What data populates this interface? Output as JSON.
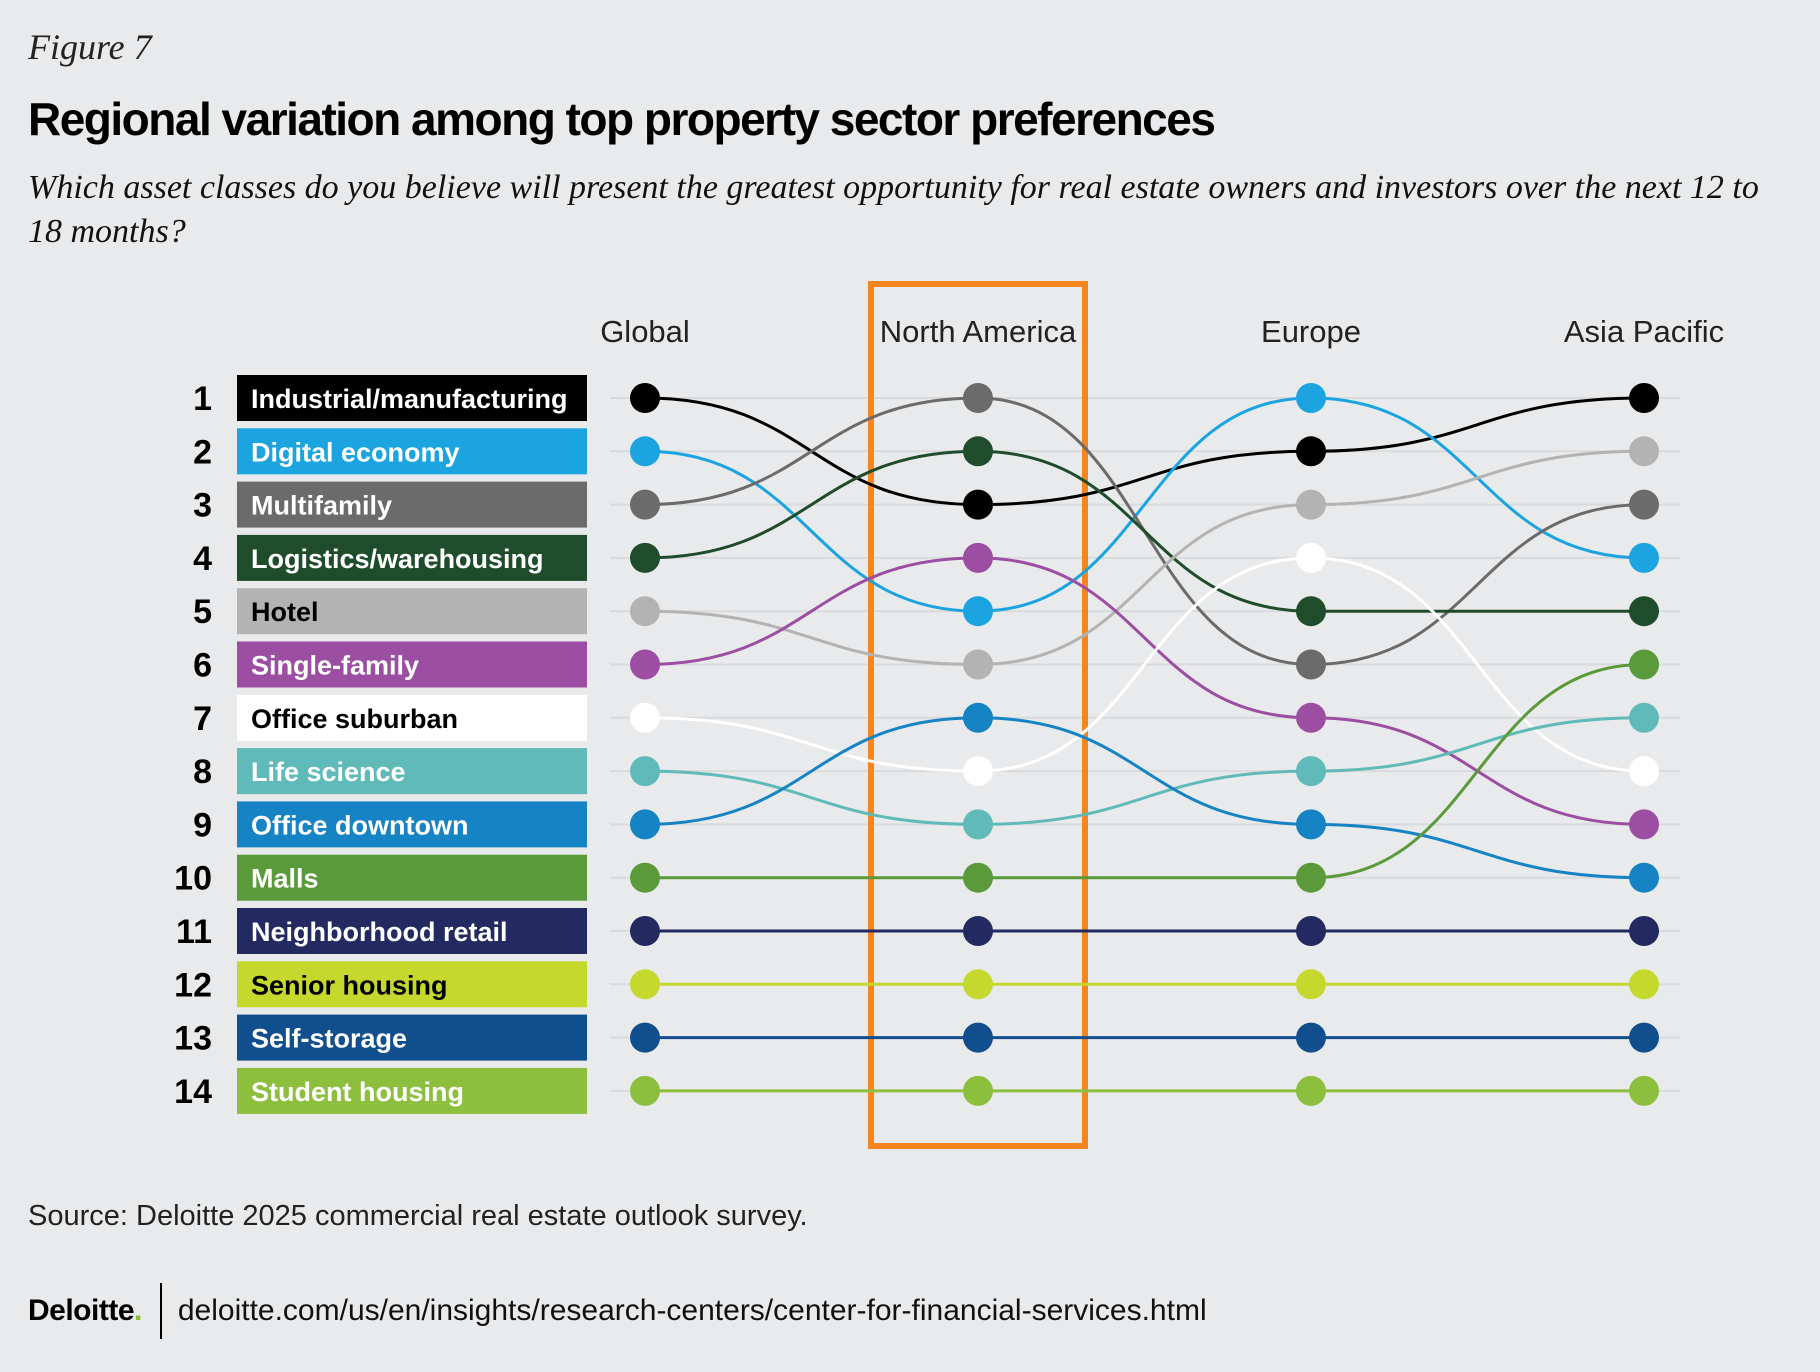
{
  "figure_label": "Figure 7",
  "title": "Regional variation among top property sector preferences",
  "subtitle": "Which asset classes do you believe will present the greatest opportunity for real estate owners and investors over the next 12 to 18 months?",
  "source": "Source: Deloitte 2025 commercial real estate outlook survey.",
  "footer": {
    "logo_text": "Deloitte",
    "logo_dot": ".",
    "url": "deloitte.com/us/en/insights/research-centers/center-for-financial-services.html"
  },
  "highlight_color": "#f5861f",
  "chart_data": {
    "type": "bump",
    "title": "Regional variation among top property sector preferences",
    "columns": [
      "Global",
      "North America",
      "Europe",
      "Asia Pacific"
    ],
    "highlighted_column": "North America",
    "rank_labels": [
      "1",
      "2",
      "3",
      "4",
      "5",
      "6",
      "7",
      "8",
      "9",
      "10",
      "11",
      "12",
      "13",
      "14"
    ],
    "series": [
      {
        "name": "Industrial/manufacturing",
        "color": "#000000",
        "label_text_color": "#ffffff",
        "ranks": [
          1,
          3,
          2,
          1
        ]
      },
      {
        "name": "Digital economy",
        "color": "#1ba4e0",
        "label_text_color": "#ffffff",
        "ranks": [
          2,
          5,
          1,
          4
        ]
      },
      {
        "name": "Multifamily",
        "color": "#6b6b6b",
        "label_text_color": "#ffffff",
        "ranks": [
          3,
          1,
          6,
          3
        ]
      },
      {
        "name": "Logistics/warehousing",
        "color": "#1f4d2b",
        "label_text_color": "#ffffff",
        "ranks": [
          4,
          2,
          5,
          5
        ]
      },
      {
        "name": "Hotel",
        "color": "#b3b3b3",
        "label_text_color": "#000000",
        "ranks": [
          5,
          6,
          3,
          2
        ]
      },
      {
        "name": "Single-family",
        "color": "#9c4ea3",
        "label_text_color": "#ffffff",
        "ranks": [
          6,
          4,
          7,
          9
        ]
      },
      {
        "name": "Office suburban",
        "color": "#ffffff",
        "label_text_color": "#000000",
        "ranks": [
          7,
          8,
          4,
          8
        ]
      },
      {
        "name": "Life science",
        "color": "#5fbab9",
        "label_text_color": "#ffffff",
        "ranks": [
          8,
          9,
          8,
          7
        ]
      },
      {
        "name": "Office downtown",
        "color": "#1683c4",
        "label_text_color": "#ffffff",
        "ranks": [
          9,
          7,
          9,
          10
        ]
      },
      {
        "name": "Malls",
        "color": "#5b9a3a",
        "label_text_color": "#ffffff",
        "ranks": [
          10,
          10,
          10,
          6
        ]
      },
      {
        "name": "Neighborhood retail",
        "color": "#232a62",
        "label_text_color": "#ffffff",
        "ranks": [
          11,
          11,
          11,
          11
        ]
      },
      {
        "name": "Senior housing",
        "color": "#c5d82e",
        "label_text_color": "#000000",
        "ranks": [
          12,
          12,
          12,
          12
        ]
      },
      {
        "name": "Self-storage",
        "color": "#114e8d",
        "label_text_color": "#ffffff",
        "ranks": [
          13,
          13,
          13,
          13
        ]
      },
      {
        "name": "Student housing",
        "color": "#8dbf3f",
        "label_text_color": "#ffffff",
        "ranks": [
          14,
          14,
          14,
          14
        ]
      }
    ]
  }
}
